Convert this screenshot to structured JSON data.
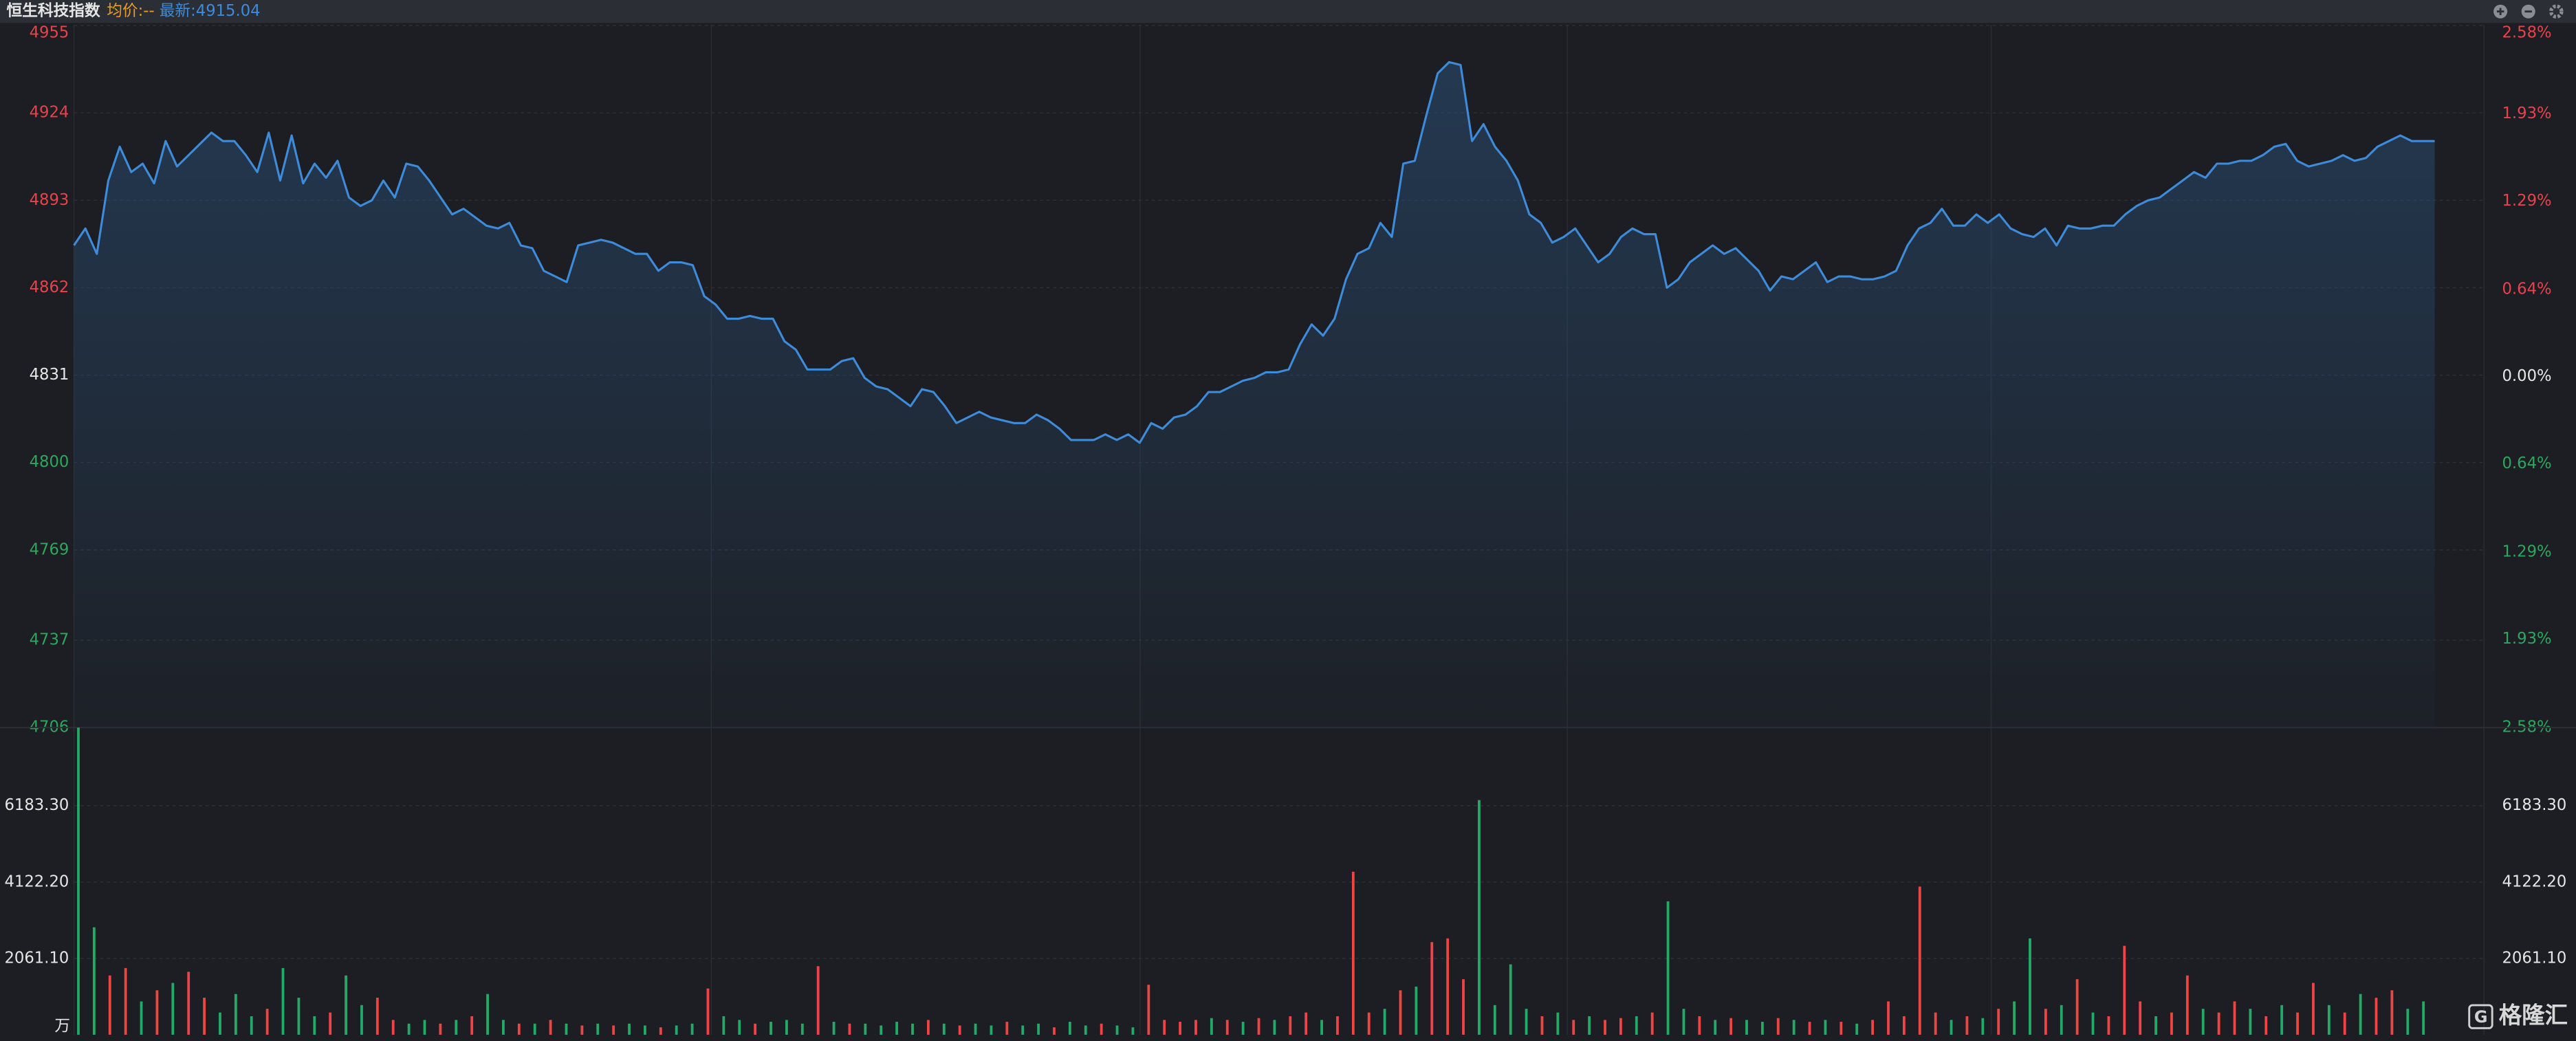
{
  "header": {
    "title": "恒生科技指数",
    "avg_price_label": "均价:--",
    "latest_label": "最新:4915.04"
  },
  "watermark": "格隆汇",
  "chart_data": [
    {
      "type": "line",
      "color": "#3d8bd9",
      "up_color": "#e8434a",
      "down_color": "#2ea65e",
      "flat_color": "#e6e6e6",
      "ylim": [
        4706,
        4955
      ],
      "yticks": [
        4955,
        4924,
        4893,
        4862,
        4831,
        4800,
        4769,
        4737,
        4706
      ],
      "y2lim": [
        -2.58,
        2.58
      ],
      "y2ticks": [
        {
          "value": 2.58,
          "label": "2.58%"
        },
        {
          "value": 1.93,
          "label": "1.93%"
        },
        {
          "value": 1.29,
          "label": "1.29%"
        },
        {
          "value": 0.64,
          "label": "0.64%"
        },
        {
          "value": 0,
          "label": "0.00%"
        },
        {
          "value": -0.64,
          "label": "0.64%"
        },
        {
          "value": -1.29,
          "label": "1.29%"
        },
        {
          "value": -1.93,
          "label": "1.93%"
        },
        {
          "value": -2.58,
          "label": "2.58%"
        }
      ],
      "grid": true,
      "values": [
        4877,
        4883,
        4874,
        4900,
        4912,
        4903,
        4906,
        4899,
        4914,
        4905,
        4909,
        4913,
        4917,
        4914,
        4914,
        4909,
        4903,
        4917,
        4900,
        4916,
        4899,
        4906,
        4901,
        4907,
        4894,
        4891,
        4893,
        4900,
        4894,
        4906,
        4905,
        4900,
        4894,
        4888,
        4890,
        4887,
        4884,
        4883,
        4885,
        4877,
        4876,
        4868,
        4866,
        4864,
        4877,
        4878,
        4879,
        4878,
        4876,
        4874,
        4874,
        4868,
        4871,
        4871,
        4870,
        4859,
        4856,
        4851,
        4851,
        4852,
        4851,
        4851,
        4843,
        4840,
        4833,
        4833,
        4833,
        4836,
        4837,
        4830,
        4827,
        4826,
        4823,
        4820,
        4826,
        4825,
        4820,
        4814,
        4816,
        4818,
        4816,
        4815,
        4814,
        4814,
        4817,
        4815,
        4812,
        4808,
        4808,
        4808,
        4810,
        4808,
        4810,
        4807,
        4814,
        4812,
        4816,
        4817,
        4820,
        4825,
        4825,
        4827,
        4829,
        4830,
        4832,
        4832,
        4833,
        4842,
        4849,
        4845,
        4851,
        4865,
        4874,
        4876,
        4885,
        4880,
        4906,
        4907,
        4923,
        4938,
        4942,
        4941,
        4914,
        4920,
        4912,
        4907,
        4900,
        4888,
        4885,
        4878,
        4880,
        4883,
        4877,
        4871,
        4874,
        4880,
        4883,
        4881,
        4881,
        4862,
        4865,
        4871,
        4874,
        4877,
        4874,
        4876,
        4872,
        4868,
        4861,
        4866,
        4865,
        4868,
        4871,
        4864,
        4866,
        4866,
        4865,
        4865,
        4866,
        4868,
        4877,
        4883,
        4885,
        4890,
        4884,
        4884,
        4888,
        4885,
        4888,
        4883,
        4881,
        4880,
        4883,
        4877,
        4884,
        4883,
        4883,
        4884,
        4884,
        4888,
        4891,
        4893,
        4894,
        4897,
        4900,
        4903,
        4901,
        4906,
        4906,
        4907,
        4907,
        4909,
        4912,
        4913,
        4907,
        4905,
        4906,
        4907,
        4909,
        4907,
        4908,
        4912,
        4914,
        4916,
        4914,
        4914,
        4914
      ]
    },
    {
      "type": "bar",
      "unit_label": "万",
      "ylim": [
        0,
        8290
      ],
      "grid": true,
      "yticks": [
        {
          "value": 2061.1,
          "label": "2061.10"
        },
        {
          "value": 4122.2,
          "label": "4122.20"
        },
        {
          "value": 6183.3,
          "label": "6183.30"
        }
      ],
      "values": [
        8290,
        2900,
        1600,
        1800,
        900,
        1200,
        1400,
        1700,
        1000,
        600,
        1100,
        500,
        700,
        1800,
        1000,
        500,
        600,
        1600,
        800,
        1000,
        400,
        300,
        400,
        300,
        400,
        500,
        1100,
        400,
        300,
        300,
        400,
        300,
        250,
        300,
        250,
        300,
        250,
        200,
        250,
        300,
        1250,
        500,
        400,
        300,
        350,
        400,
        300,
        1850,
        350,
        300,
        300,
        250,
        350,
        300,
        400,
        300,
        250,
        300,
        250,
        350,
        250,
        300,
        200,
        350,
        250,
        300,
        250,
        200,
        1350,
        400,
        350,
        400,
        450,
        400,
        350,
        450,
        400,
        500,
        600,
        400,
        500,
        4400,
        600,
        700,
        1200,
        1300,
        2500,
        2600,
        1500,
        6335,
        800,
        1900,
        700,
        500,
        600,
        400,
        500,
        400,
        450,
        500,
        600,
        3600,
        700,
        500,
        400,
        450,
        400,
        350,
        450,
        400,
        350,
        400,
        350,
        300,
        400,
        900,
        500,
        4000,
        600,
        400,
        500,
        450,
        700,
        900,
        2600,
        700,
        800,
        1500,
        600,
        500,
        2400,
        900,
        500,
        600,
        1600,
        700,
        600,
        900,
        700,
        500,
        800,
        600,
        1400,
        800,
        600,
        1100,
        1000,
        1200,
        700,
        900
      ],
      "colors": [
        "#2a6",
        "#2a6",
        "#e44",
        "#e44",
        "#2a6",
        "#e44",
        "#2a6",
        "#e44",
        "#e44",
        "#2a6",
        "#2a6",
        "#2a6",
        "#e44",
        "#2a6",
        "#2a6",
        "#2a6",
        "#e44",
        "#2a6",
        "#2a6",
        "#e44",
        "#e44",
        "#2a6",
        "#2a6",
        "#e44",
        "#2a6",
        "#e44",
        "#2a6",
        "#2a6",
        "#e44",
        "#2a6",
        "#e44",
        "#2a6",
        "#e44",
        "#2a6",
        "#e44",
        "#2a6",
        "#2a6",
        "#e44",
        "#2a6",
        "#2a6",
        "#e44",
        "#2a6",
        "#2a6",
        "#e44",
        "#2a6",
        "#2a6",
        "#2a6",
        "#e44",
        "#2a6",
        "#e44",
        "#2a6",
        "#2a6",
        "#2a6",
        "#2a6",
        "#e44",
        "#2a6",
        "#e44",
        "#2a6",
        "#2a6",
        "#e44",
        "#2a6",
        "#2a6",
        "#e44",
        "#2a6",
        "#2a6",
        "#e44",
        "#2a6",
        "#2a6",
        "#e44",
        "#e44",
        "#e44",
        "#e44",
        "#2a6",
        "#e44",
        "#2a6",
        "#e44",
        "#2a6",
        "#e44",
        "#e44",
        "#2a6",
        "#e44",
        "#e44",
        "#e44",
        "#2a6",
        "#e44",
        "#2a6",
        "#e44",
        "#e44",
        "#e44",
        "#2a6",
        "#2a6",
        "#2a6",
        "#2a6",
        "#e44",
        "#2a6",
        "#e44",
        "#2a6",
        "#e44",
        "#e44",
        "#2a6",
        "#e44",
        "#2a6",
        "#2a6",
        "#e44",
        "#2a6",
        "#e44",
        "#2a6",
        "#2a6",
        "#e44",
        "#2a6",
        "#e44",
        "#2a6",
        "#e44",
        "#2a6",
        "#e44",
        "#e44",
        "#e44",
        "#e44",
        "#e44",
        "#2a6",
        "#e44",
        "#2a6",
        "#e44",
        "#2a6",
        "#2a6",
        "#e44",
        "#2a6",
        "#e44",
        "#2a6",
        "#e44",
        "#e44",
        "#e44",
        "#2a6",
        "#e44",
        "#e44",
        "#2a6",
        "#e44",
        "#e44",
        "#2a6",
        "#e44",
        "#2a6",
        "#e44",
        "#e44",
        "#2a6",
        "#e44",
        "#2a6",
        "#e44",
        "#e44",
        "#2a6",
        "#2a6"
      ]
    }
  ]
}
